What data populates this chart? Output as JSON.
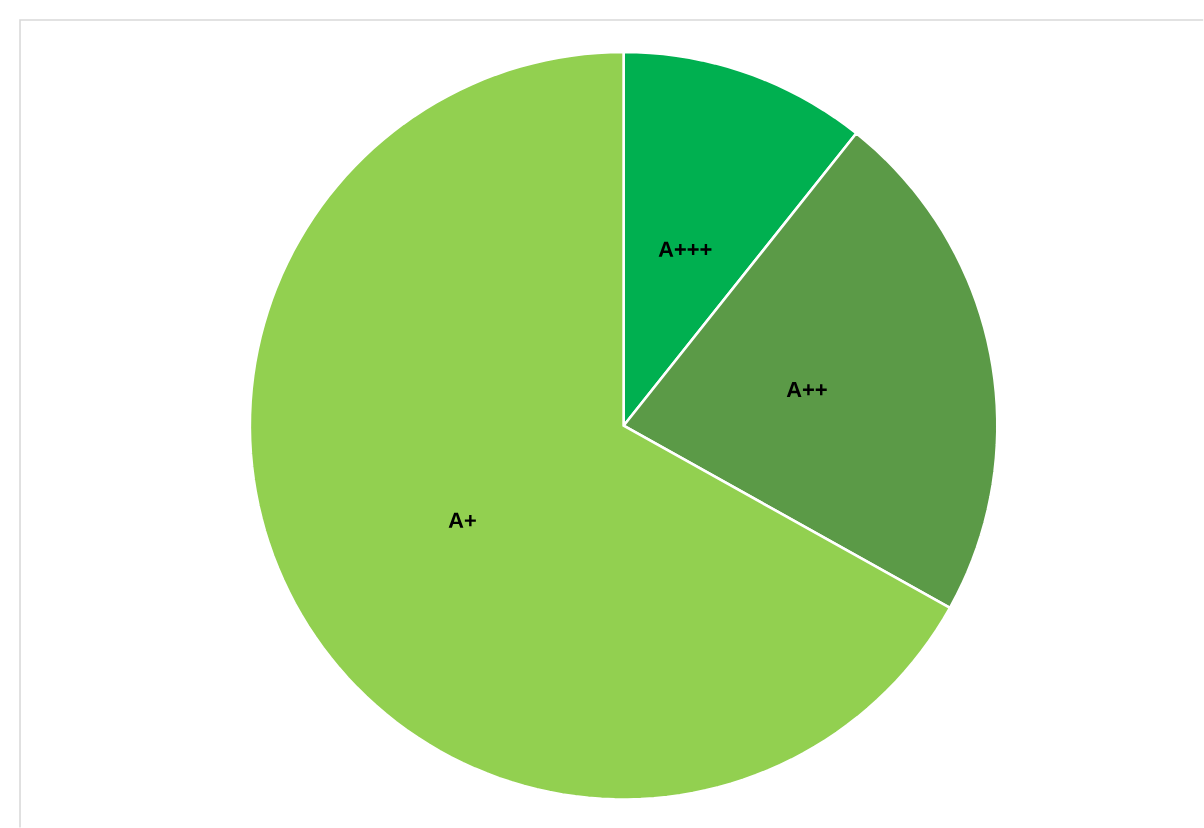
{
  "chart_data": {
    "type": "pie",
    "categories": [
      "A+++",
      "A++",
      "A+"
    ],
    "values": [
      10.7,
      22.4,
      66.9
    ],
    "colors": [
      "#00b050",
      "#5b9a47",
      "#92d050"
    ]
  }
}
